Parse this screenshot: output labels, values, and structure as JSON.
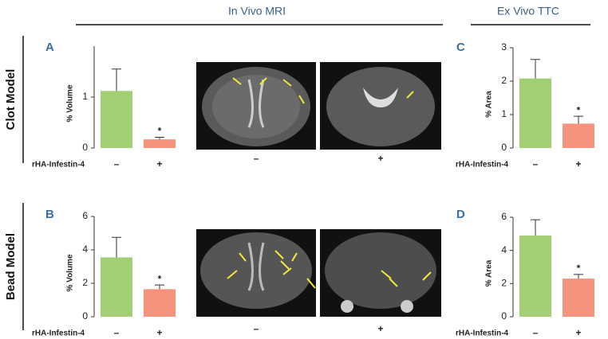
{
  "figure": {
    "headings": [
      "In Vivo MRI",
      "Ex Vivo TTC"
    ],
    "rows": [
      "Clot Model",
      "Bead Model"
    ],
    "panels": [
      "A",
      "B",
      "C",
      "D"
    ],
    "mri_labels": [
      "–",
      "+",
      "–",
      "+"
    ]
  },
  "chart_data": [
    {
      "type": "bar",
      "ylabel": "% Volume",
      "xlabel": "rHA-Infestin-4",
      "categories": [
        "–",
        "+"
      ],
      "values": [
        1.12,
        0.17
      ],
      "errors": [
        0.43,
        0.04
      ],
      "colors": [
        "#a3cf74",
        "#f5947c"
      ],
      "ylim": [
        0,
        2
      ],
      "yticks": [
        0,
        1
      ],
      "annotation": "*"
    },
    {
      "type": "bar",
      "ylabel": "% Volume",
      "xlabel": "rHA-Infestin-4",
      "categories": [
        "–",
        "+"
      ],
      "values": [
        3.55,
        1.65
      ],
      "errors": [
        1.2,
        0.25
      ],
      "colors": [
        "#a3cf74",
        "#f5947c"
      ],
      "ylim": [
        0,
        6
      ],
      "yticks": [
        0,
        2,
        4,
        6
      ],
      "annotation": "*"
    },
    {
      "type": "bar",
      "ylabel": "% Area",
      "xlabel": "rHA-Infestin-4",
      "categories": [
        "–",
        "+"
      ],
      "values": [
        2.08,
        0.73
      ],
      "errors": [
        0.57,
        0.22
      ],
      "colors": [
        "#a3cf74",
        "#f5947c"
      ],
      "ylim": [
        0,
        3
      ],
      "yticks": [
        0,
        1,
        2,
        3
      ],
      "annotation": "*"
    },
    {
      "type": "bar",
      "ylabel": "% Area",
      "xlabel": "rHA-Infestin-4",
      "categories": [
        "–",
        "+"
      ],
      "values": [
        4.9,
        2.3
      ],
      "errors": [
        0.95,
        0.25
      ],
      "colors": [
        "#a3cf74",
        "#f5947c"
      ],
      "ylim": [
        0,
        6
      ],
      "yticks": [
        0,
        2,
        4,
        6
      ],
      "annotation": "*"
    }
  ]
}
